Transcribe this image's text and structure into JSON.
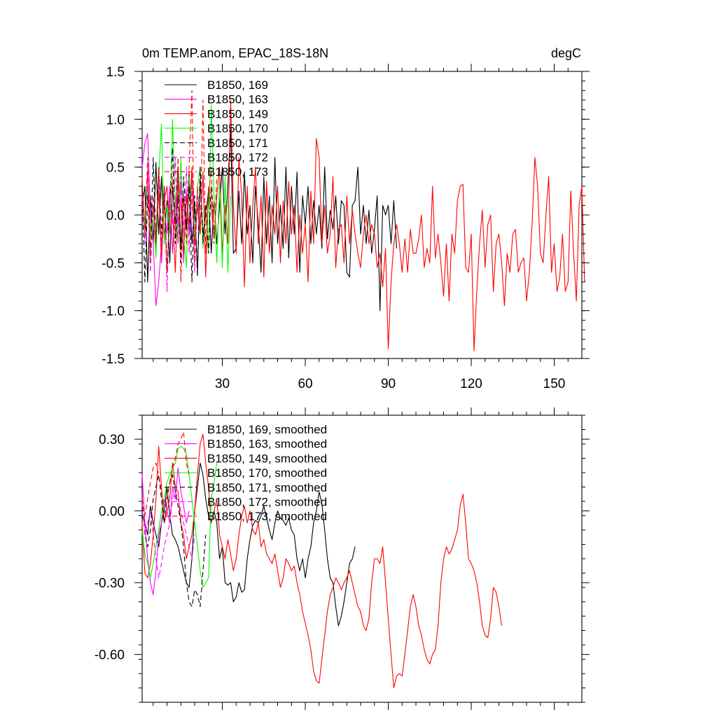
{
  "colors": {
    "black": "#000000",
    "magenta": "#ff00ff",
    "red": "#ff0000",
    "green": "#00ff00"
  },
  "chart_data": [
    {
      "type": "line",
      "title": "0m TEMP.anom, EPAC_18S-18N",
      "units": "degC",
      "xlim": [
        1,
        160
      ],
      "ylim": [
        -1.5,
        1.5
      ],
      "xticks": [
        30,
        60,
        90,
        120,
        150
      ],
      "xtick_labels": [
        "30",
        "60",
        "90",
        "120",
        "150"
      ],
      "yticks": [
        -1.5,
        -1.0,
        -0.5,
        0.0,
        0.5,
        1.0,
        1.5
      ],
      "ytick_labels": [
        "-1.5",
        "-1.0",
        "-0.5",
        "0.0",
        "0.5",
        "1.0",
        "1.5"
      ],
      "legend_position": "top-left",
      "series": [
        {
          "name": "B1850, 169",
          "color": "#000000",
          "dash": false,
          "values": [
            0.1,
            0.3,
            -0.7,
            0.2,
            -0.3,
            0.55,
            -0.2,
            0.4,
            -0.25,
            0.15,
            -0.5,
            0.3,
            -0.1,
            0.5,
            -0.35,
            0.2,
            -0.15,
            0.45,
            -0.3,
            0.1,
            -0.6,
            0.35,
            -0.2,
            0.0,
            0.25,
            -0.4,
            0.15,
            -0.3,
            0.1,
            0.5,
            -0.2,
            0.3,
            0.9,
            -0.4,
            -0.35,
            0.25,
            -0.3,
            0.45,
            -0.2,
            0.1,
            -0.5,
            0.3,
            -0.1,
            -0.6,
            0.4,
            -0.3,
            0.2,
            -0.5,
            0.6,
            -0.3,
            0.1,
            -0.35,
            0.5,
            -0.45,
            0.3,
            -0.2,
            0.45,
            -0.6,
            0.2,
            -0.1,
            0.3,
            -0.3,
            0.15,
            -0.2,
            0.1,
            -0.35,
            0.5,
            -0.25,
            0.05,
            -0.15,
            0.2,
            -0.3,
            0.15,
            0.1,
            -0.6,
            -0.65,
            0.1,
            0.15,
            0.5,
            -0.2,
            0.1,
            -0.3,
            0.05,
            -0.4,
            -0.15,
            0.2,
            -1.0,
            0.1,
            0.0,
            0.1,
            -0.3,
            0.15,
            -0.35
          ]
        },
        {
          "name": "B1850, 163",
          "color": "#ff00ff",
          "dash": false,
          "values": [
            0.5,
            0.75,
            0.85,
            0.0,
            -0.3,
            -0.95,
            -0.7,
            -0.3,
            0.1,
            -0.2,
            0.3,
            -0.4,
            0.2,
            -0.1,
            0.35,
            -0.5,
            0.25,
            -0.2,
            0.4,
            0.1
          ]
        },
        {
          "name": "B1850, 149",
          "color": "#ff0000",
          "dash": false,
          "values": [
            0.3,
            -0.1,
            0.45,
            -0.2,
            0.1,
            -0.35,
            0.25,
            -0.5,
            0.15,
            0.3,
            -0.2,
            0.05,
            -0.6,
            0.35,
            0.1,
            -0.4,
            0.2,
            -0.1,
            0.5,
            -0.3,
            0.1,
            -0.2,
            0.45,
            -0.65,
            0.3,
            0.1,
            -0.25,
            0.2,
            0.5,
            -0.4,
            0.1,
            -0.3,
            1.2,
            0.1,
            -0.4,
            0.6,
            0.2,
            -0.75,
            0.3,
            -0.5,
            0.1,
            0.5,
            -0.3,
            0.2,
            -0.65,
            0.35,
            -0.4,
            0.1,
            -0.2,
            0.3,
            -0.5,
            0.15,
            -0.3,
            0.35,
            -0.2,
            0.1,
            -0.6,
            0.0,
            -0.4,
            -0.1,
            -0.7,
            0.25,
            -0.3,
            0.8,
            0.6,
            -0.3,
            0.1,
            -0.4,
            -0.2,
            0.4,
            -0.55,
            -0.15,
            -0.1,
            -0.5,
            0.2,
            -0.3,
            0.05,
            -0.2,
            -0.4,
            -0.55,
            -0.2,
            0.0,
            -0.3,
            -0.1,
            -0.2,
            -0.55,
            -0.4,
            -0.75,
            -0.35,
            -1.4,
            -0.7,
            -0.3,
            -0.1,
            -0.3,
            -0.6,
            -0.25,
            -0.6,
            -0.15,
            -0.4,
            -0.4,
            -0.25,
            0.0,
            -0.55,
            -0.35,
            -0.5,
            0.3,
            -0.45,
            -0.2,
            -0.5,
            -0.85,
            -0.3,
            -0.9,
            -0.2,
            -0.4,
            0.15,
            0.3,
            0.32,
            -0.55,
            -0.6,
            -0.2,
            -1.42,
            -0.8,
            -0.3,
            0.05,
            -0.55,
            -0.1,
            0.0,
            -0.8,
            -0.3,
            -0.2,
            -0.5,
            -0.95,
            -0.4,
            -0.6,
            -0.2,
            -0.15,
            -0.6,
            -0.5,
            -0.45,
            -0.9,
            -0.6,
            -0.1,
            0.6,
            0.3,
            -0.4,
            -0.5,
            0.0,
            0.4,
            -0.6,
            -0.3,
            -0.8,
            -0.65,
            -0.2,
            -0.8,
            -0.7,
            0.25,
            -0.4,
            -0.9,
            0.1,
            0.3,
            -0.7
          ]
        },
        {
          "name": "B1850, 170",
          "color": "#00ff00",
          "dash": false,
          "values": [
            0.2,
            -0.1,
            0.3,
            -0.2,
            0.05,
            -0.45,
            0.4,
            0.95,
            -0.3,
            0.1,
            -0.2,
            1.0,
            0.1,
            -0.3,
            0.6,
            -0.2,
            -0.55,
            0.4,
            0.1,
            -0.25,
            0.3,
            0.5,
            -0.35,
            0.1,
            -0.4,
            1.15,
            0.2,
            -0.5,
            0.35,
            -0.55,
            0.4,
            -0.6,
            0.2
          ]
        },
        {
          "name": "B1850, 171",
          "color": "#000000",
          "dash": true,
          "values": [
            0.3,
            -0.7,
            0.2,
            -0.4,
            0.6,
            -0.3,
            0.5,
            -0.2,
            0.3,
            -0.6,
            0.1,
            0.7,
            -0.3,
            0.2,
            -0.5,
            0.4,
            -0.1,
            0.3,
            -0.7,
            0.2,
            -0.65,
            0.5,
            -0.3,
            0.1,
            -0.4,
            0.3,
            -0.2
          ]
        },
        {
          "name": "B1850, 172",
          "color": "#ff00ff",
          "dash": true,
          "values": [
            0.2,
            -0.3,
            0.5,
            -0.6,
            0.1,
            -0.2,
            0.4,
            -0.5,
            0.3,
            -0.8,
            0.2,
            -0.1,
            0.6,
            -0.3,
            0.4,
            -0.2,
            0.5,
            -0.4,
            0.3,
            -0.6,
            0.2,
            -0.1,
            0.4
          ]
        },
        {
          "name": "B1850, 173",
          "color": "#ff0000",
          "dash": true,
          "values": [
            0.4,
            -0.2,
            0.6,
            -0.5,
            0.2,
            -0.3,
            0.5,
            -0.4,
            0.3,
            -0.6,
            0.1,
            0.4,
            -0.2,
            0.6,
            -0.7,
            0.2,
            -0.3,
            0.5,
            1.3,
            -0.5,
            0.3,
            -0.2,
            1.2,
            -0.4,
            0.2,
            0.5,
            -0.3,
            0.4
          ]
        }
      ]
    },
    {
      "type": "line",
      "xlim": [
        1,
        160
      ],
      "ylim": [
        -0.8,
        0.4
      ],
      "xticks": [
        30,
        60,
        90,
        120,
        150
      ],
      "xtick_labels": [
        "",
        "",
        "",
        "",
        ""
      ],
      "yticks": [
        -0.6,
        -0.3,
        0.0,
        0.3
      ],
      "ytick_labels": [
        "-0.60",
        "-0.30",
        "0.00",
        "0.30"
      ],
      "legend_position": "top-left",
      "series": [
        {
          "name": "B1850, 169, smoothed",
          "color": "#000000",
          "dash": false,
          "values": [
            -0.02,
            -0.05,
            -0.1,
            0.02,
            -0.05,
            -0.1,
            -0.15,
            -0.05,
            0.0,
            0.1,
            -0.02,
            -0.1,
            -0.12,
            -0.15,
            -0.2,
            -0.25,
            -0.3,
            -0.32,
            -0.2,
            0.0,
            0.1,
            0.2,
            0.15,
            0.05,
            -0.02,
            -0.05,
            0.0,
            -0.05,
            -0.2,
            -0.15,
            -0.3,
            -0.31,
            -0.3,
            -0.38,
            -0.36,
            -0.3,
            -0.34,
            -0.33,
            -0.2,
            -0.12,
            -0.06,
            -0.04,
            -0.05,
            -0.02,
            0.02,
            -0.03,
            -0.08,
            -0.12,
            -0.05,
            0.0,
            -0.03,
            -0.04,
            -0.06,
            -0.03,
            -0.08,
            -0.1,
            -0.2,
            -0.25,
            -0.2,
            -0.28,
            -0.2,
            -0.15,
            -0.05,
            0.0,
            0.08,
            0.03,
            -0.08,
            -0.2,
            -0.28,
            -0.3,
            -0.4,
            -0.48,
            -0.44,
            -0.38,
            -0.3,
            -0.22,
            -0.2,
            -0.15
          ]
        },
        {
          "name": "B1850, 163, smoothed",
          "color": "#ff00ff",
          "dash": false,
          "values": [
            0.15,
            -0.05,
            -0.2,
            -0.3,
            -0.35,
            -0.25,
            -0.1,
            -0.05,
            0.05,
            0.0,
            -0.05,
            0.1,
            0.05,
            0.18,
            0.08,
            0.02,
            -0.05,
            0.0
          ]
        },
        {
          "name": "B1850, 149, smoothed",
          "color": "#ff0000",
          "dash": false,
          "values": [
            -0.05,
            -0.26,
            -0.28,
            -0.22,
            -0.1,
            0.05,
            0.27,
            0.1,
            -0.05,
            0.0,
            0.05,
            0.2,
            0.1,
            0.08,
            -0.05,
            -0.1,
            -0.2,
            -0.15,
            -0.1,
            0.0,
            0.15,
            0.28,
            0.32,
            0.2,
            0.1,
            -0.05,
            0.0,
            0.05,
            -0.1,
            -0.15,
            -0.2,
            -0.12,
            -0.18,
            -0.25,
            -0.2,
            -0.1,
            -0.02,
            0.02,
            -0.05,
            0.0,
            -0.08,
            -0.1,
            -0.05,
            -0.15,
            -0.12,
            -0.18,
            -0.2,
            -0.22,
            -0.18,
            -0.25,
            -0.32,
            -0.28,
            -0.2,
            -0.22,
            -0.25,
            -0.23,
            -0.3,
            -0.35,
            -0.42,
            -0.47,
            -0.52,
            -0.58,
            -0.67,
            -0.71,
            -0.72,
            -0.62,
            -0.52,
            -0.42,
            -0.35,
            -0.32,
            -0.28,
            -0.3,
            -0.33,
            -0.3,
            -0.28,
            -0.25,
            -0.3,
            -0.35,
            -0.4,
            -0.42,
            -0.48,
            -0.5,
            -0.45,
            -0.3,
            -0.2,
            -0.2,
            -0.22,
            -0.15,
            -0.3,
            -0.45,
            -0.6,
            -0.74,
            -0.69,
            -0.68,
            -0.69,
            -0.6,
            -0.5,
            -0.4,
            -0.35,
            -0.4,
            -0.48,
            -0.52,
            -0.58,
            -0.62,
            -0.64,
            -0.6,
            -0.58,
            -0.48,
            -0.3,
            -0.2,
            -0.15,
            -0.18,
            -0.16,
            -0.12,
            -0.08,
            0.02,
            0.07,
            -0.05,
            -0.2,
            -0.22,
            -0.25,
            -0.3,
            -0.38,
            -0.48,
            -0.52,
            -0.53,
            -0.45,
            -0.32,
            -0.34,
            -0.4,
            -0.48
          ]
        },
        {
          "name": "B1850, 170, smoothed",
          "color": "#00ff00",
          "dash": false,
          "values": [
            -0.08,
            -0.18,
            -0.22,
            -0.28,
            -0.22,
            -0.15,
            -0.08,
            0.0,
            0.05,
            0.12,
            0.15,
            0.18,
            0.2,
            0.26,
            0.27,
            0.26,
            0.24,
            0.15,
            0.05,
            -0.05,
            -0.15,
            -0.25,
            -0.32,
            -0.3,
            -0.28,
            0.05,
            0.12,
            0.2
          ]
        },
        {
          "name": "B1850, 171, smoothed",
          "color": "#000000",
          "dash": true,
          "values": [
            0.05,
            -0.1,
            -0.15,
            -0.08,
            0.05,
            0.1,
            0.15,
            0.05,
            -0.05,
            0.05,
            0.12,
            0.15,
            0.08,
            0.02,
            -0.05,
            -0.15,
            -0.3,
            -0.38,
            -0.4,
            -0.33,
            -0.35,
            -0.4,
            -0.25,
            -0.1
          ]
        },
        {
          "name": "B1850, 172, smoothed",
          "color": "#ff00ff",
          "dash": true,
          "values": [
            0.05,
            -0.1,
            -0.05,
            0.0,
            -0.1,
            -0.2,
            -0.28,
            -0.22,
            -0.15,
            -0.1,
            -0.05,
            0.05,
            0.08,
            0.05,
            0.0,
            -0.05,
            -0.1,
            -0.15,
            -0.2,
            -0.1
          ]
        },
        {
          "name": "B1850, 173, smoothed",
          "color": "#ff0000",
          "dash": true,
          "values": [
            0.05,
            -0.02,
            0.05,
            0.12,
            0.18,
            0.2,
            0.15,
            0.08,
            0.02,
            0.05,
            0.12,
            0.18,
            0.22,
            0.28,
            0.3,
            0.33,
            0.2,
            0.15
          ]
        }
      ]
    }
  ]
}
